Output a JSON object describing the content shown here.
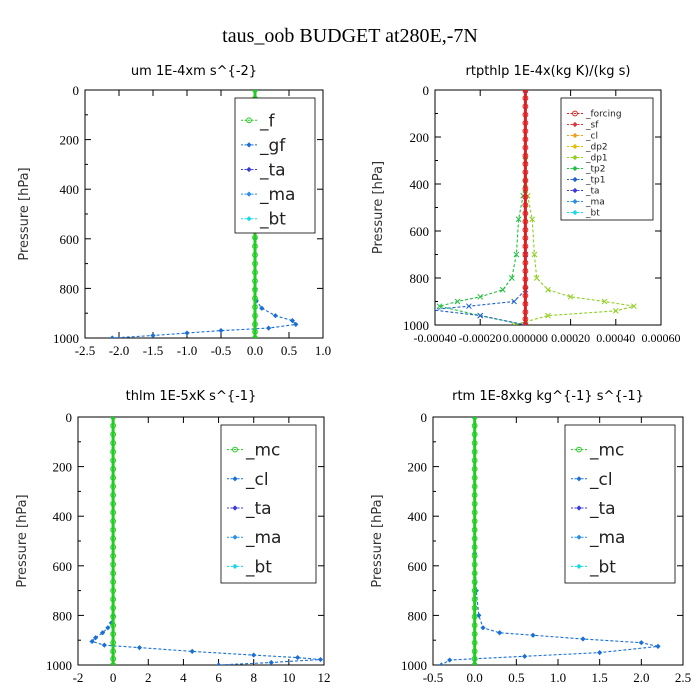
{
  "figure": {
    "title": "taus_oob  BUDGET at280E,-7N"
  },
  "colors": {
    "axis": "#000000",
    "f": "#22cc22",
    "gf": "#1a6fd6",
    "ta": "#3a3ad8",
    "ma": "#2b8fe6",
    "bt": "#18d8e8",
    "forcing": "#e02020",
    "sf": "#e03535",
    "cl_rt": "#f0a020",
    "dp2": "#e0c000",
    "dp1": "#8fcf20",
    "tp2": "#20c040",
    "tp1": "#2060d0",
    "mc": "#22cc22",
    "cl": "#1a6fd6"
  },
  "chart_data": [
    {
      "type": "line",
      "title": "um   1E-4xm s^{-2}",
      "ylabel": "Pressure [hPa]",
      "xlim": [
        -2.5,
        1.0
      ],
      "ylim": [
        1000,
        0
      ],
      "xticks": [
        -2.5,
        -2.0,
        -1.5,
        -1.0,
        -0.5,
        0.0,
        0.5,
        1.0
      ],
      "xtick_labels": [
        "-2.5",
        "-2.0",
        "-1.5",
        "-1.0",
        "-0.5",
        "0.0",
        "0.5",
        "1.0"
      ],
      "yticks": [
        0,
        200,
        400,
        600,
        800,
        1000
      ],
      "ytick_labels": [
        "0",
        "200",
        "400",
        "600",
        "800",
        "1000"
      ],
      "legend": {
        "position": "top-right",
        "entries": [
          "_f",
          "_gf",
          "_ta",
          "_ma",
          "_bt"
        ]
      },
      "series": [
        {
          "name": "_gf",
          "color_key": "gf",
          "x": [
            0.0,
            0.0,
            0.0,
            0.0,
            0.0,
            0.02,
            0.1,
            0.3,
            0.55,
            0.6,
            0.2,
            -0.5,
            -1.0,
            -1.5,
            -2.1
          ],
          "y": [
            0,
            200,
            400,
            600,
            800,
            850,
            880,
            910,
            930,
            945,
            960,
            970,
            980,
            990,
            1000
          ]
        },
        {
          "name": "_f",
          "color_key": "f",
          "x": [
            0,
            0,
            0,
            0,
            0,
            0,
            0,
            0,
            0,
            0,
            0,
            0,
            0,
            0,
            0,
            0,
            0,
            0,
            0,
            0,
            0,
            0,
            0,
            0,
            0,
            0,
            0,
            0,
            0,
            0
          ],
          "y": [
            0,
            35,
            70,
            105,
            140,
            175,
            210,
            245,
            280,
            315,
            350,
            385,
            420,
            455,
            490,
            525,
            560,
            595,
            630,
            665,
            700,
            735,
            770,
            805,
            840,
            875,
            910,
            945,
            975,
            1000
          ]
        }
      ]
    },
    {
      "type": "line",
      "title": "rtpthlp   1E-4x(kg K)/(kg s)",
      "ylabel": "Pressure [hPa]",
      "xlim": [
        -0.0004,
        0.0006
      ],
      "ylim": [
        1000,
        0
      ],
      "xticks": [
        -0.0004,
        -0.0002,
        0.0,
        0.0002,
        0.0004,
        0.0006
      ],
      "xtick_labels": [
        "-0.00040",
        "-0.00020",
        "0.000000",
        "0.00020",
        "0.00040",
        "0.00060"
      ],
      "yticks": [
        0,
        200,
        400,
        600,
        800,
        1000
      ],
      "ytick_labels": [
        "0",
        "200",
        "400",
        "600",
        "800",
        "1000"
      ],
      "legend": {
        "position": "top-right",
        "entries": [
          "_forcing",
          "_sf",
          "_cl",
          "_dp2",
          "_dp1",
          "_tp2",
          "_tp1",
          "_ta",
          "_ma",
          "_bt"
        ]
      },
      "series": [
        {
          "name": "_dp1",
          "color_key": "dp1",
          "x": [
            0.0,
            0.0,
            1e-05,
            3e-05,
            4e-05,
            5e-05,
            0.0001,
            0.0002,
            0.00035,
            0.00048,
            0.0004,
            0.0001,
            -5e-05
          ],
          "y": [
            0,
            300,
            450,
            550,
            700,
            800,
            850,
            880,
            900,
            920,
            940,
            960,
            1000
          ]
        },
        {
          "name": "_tp2",
          "color_key": "tp2",
          "x": [
            0.0,
            0.0,
            -1e-05,
            -3e-05,
            -4e-05,
            -6e-05,
            -0.0001,
            -0.0002,
            -0.0003,
            -0.00038,
            -0.0002,
            0.0
          ],
          "y": [
            0,
            300,
            450,
            550,
            700,
            800,
            850,
            880,
            900,
            920,
            960,
            1000
          ]
        },
        {
          "name": "_tp1",
          "color_key": "tp1",
          "x": [
            0.0,
            0.0,
            0.0,
            -5e-05,
            -0.00025,
            -0.00042,
            -0.0002,
            0.0
          ],
          "y": [
            0,
            700,
            850,
            900,
            920,
            935,
            960,
            1000
          ]
        },
        {
          "name": "_forcing",
          "color_key": "forcing",
          "x": [
            0,
            0,
            0,
            0,
            0,
            0,
            0,
            0,
            0,
            0,
            0,
            0,
            0,
            0,
            0,
            0,
            0,
            0,
            0,
            0,
            0,
            0,
            0,
            0,
            0,
            0,
            0,
            0,
            0,
            0
          ],
          "y": [
            0,
            35,
            70,
            105,
            140,
            175,
            210,
            245,
            280,
            315,
            350,
            385,
            420,
            455,
            490,
            525,
            560,
            595,
            630,
            665,
            700,
            735,
            770,
            805,
            840,
            875,
            910,
            945,
            975,
            1000
          ]
        }
      ]
    },
    {
      "type": "line",
      "title": "thlm   1E-5xK s^{-1}",
      "ylabel": "Pressure [hPa]",
      "xlim": [
        -2,
        12
      ],
      "ylim": [
        1000,
        0
      ],
      "xticks": [
        -2,
        0,
        2,
        4,
        6,
        8,
        10,
        12
      ],
      "xtick_labels": [
        "-2",
        "0",
        "2",
        "4",
        "6",
        "8",
        "10",
        "12"
      ],
      "yticks": [
        0,
        200,
        400,
        600,
        800,
        1000
      ],
      "ytick_labels": [
        "0",
        "200",
        "400",
        "600",
        "800",
        "1000"
      ],
      "legend": {
        "position": "top-right",
        "entries": [
          "_mc",
          "_cl",
          "_ta",
          "_ma",
          "_bt"
        ]
      },
      "series": [
        {
          "name": "_cl",
          "color_key": "cl",
          "x": [
            0.0,
            0.0,
            -0.1,
            -0.3,
            -0.6,
            -1.0,
            -1.2,
            -0.5,
            1.5,
            4.5,
            8.0,
            10.5,
            11.8,
            9.0,
            6.0
          ],
          "y": [
            0,
            800,
            830,
            850,
            870,
            890,
            905,
            920,
            930,
            945,
            960,
            970,
            978,
            990,
            1000
          ]
        },
        {
          "name": "_mc",
          "color_key": "mc",
          "x": [
            0,
            0,
            0,
            0,
            0,
            0,
            0,
            0,
            0,
            0,
            0,
            0,
            0,
            0,
            0,
            0,
            0,
            0,
            0,
            0,
            0,
            0,
            0,
            0,
            0,
            0,
            0,
            0,
            0,
            0
          ],
          "y": [
            0,
            35,
            70,
            105,
            140,
            175,
            210,
            245,
            280,
            315,
            350,
            385,
            420,
            455,
            490,
            525,
            560,
            595,
            630,
            665,
            700,
            735,
            770,
            805,
            840,
            875,
            910,
            945,
            975,
            1000
          ]
        }
      ]
    },
    {
      "type": "line",
      "title": "rtm   1E-8xkg kg^{-1} s^{-1}",
      "ylabel": "Pressure [hPa]",
      "xlim": [
        -0.5,
        2.5
      ],
      "ylim": [
        1000,
        0
      ],
      "xticks": [
        -0.5,
        0.0,
        0.5,
        1.0,
        1.5,
        2.0,
        2.5
      ],
      "xtick_labels": [
        "-0.5",
        "0.0",
        "0.5",
        "1.0",
        "1.5",
        "2.0",
        "2.5"
      ],
      "yticks": [
        0,
        200,
        400,
        600,
        800,
        1000
      ],
      "ytick_labels": [
        "0",
        "200",
        "400",
        "600",
        "800",
        "1000"
      ],
      "legend": {
        "position": "top-right",
        "entries": [
          "_mc",
          "_cl",
          "_ta",
          "_ma",
          "_bt"
        ]
      },
      "series": [
        {
          "name": "_cl",
          "color_key": "cl",
          "x": [
            0.0,
            0.0,
            0.02,
            0.05,
            0.1,
            0.3,
            0.7,
            1.3,
            2.0,
            2.2,
            1.5,
            0.6,
            -0.3,
            -0.4
          ],
          "y": [
            0,
            550,
            700,
            800,
            850,
            870,
            880,
            895,
            910,
            925,
            950,
            965,
            980,
            1000
          ]
        },
        {
          "name": "_mc",
          "color_key": "mc",
          "x": [
            0,
            0,
            0,
            0,
            0,
            0,
            0,
            0,
            0,
            0,
            0,
            0,
            0,
            0,
            0,
            0,
            0,
            0,
            0,
            0,
            0,
            0,
            0,
            0,
            0,
            0,
            0,
            0,
            0,
            0
          ],
          "y": [
            0,
            35,
            70,
            105,
            140,
            175,
            210,
            245,
            280,
            315,
            350,
            385,
            420,
            455,
            490,
            525,
            560,
            595,
            630,
            665,
            700,
            735,
            770,
            805,
            840,
            875,
            910,
            945,
            975,
            1000
          ]
        }
      ]
    }
  ]
}
